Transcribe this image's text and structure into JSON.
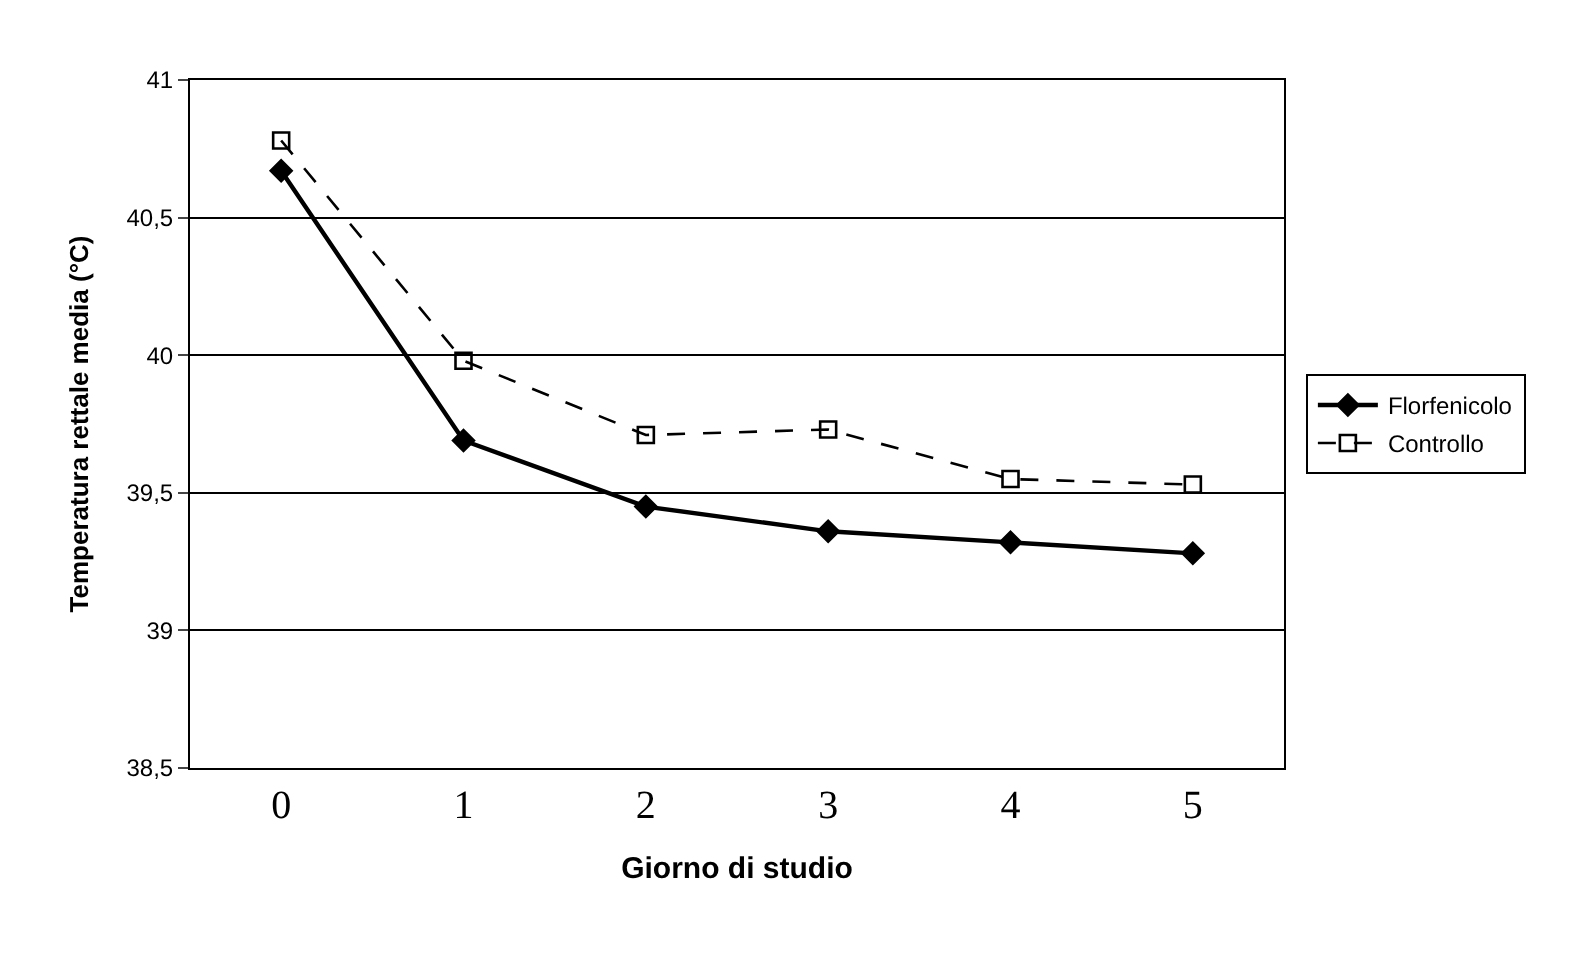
{
  "chart_data": {
    "type": "line",
    "xlabel": "Giorno di studio",
    "ylabel": "Temperatura rettale media (°C)",
    "categories": [
      "0",
      "1",
      "2",
      "3",
      "4",
      "5"
    ],
    "series": [
      {
        "name": "Florfenicolo",
        "color": "#000000",
        "values": [
          40.67,
          39.69,
          39.45,
          39.36,
          39.32,
          39.28
        ],
        "marker": "diamond",
        "line_style": "solid"
      },
      {
        "name": "Controllo",
        "color": "#000000",
        "values": [
          40.78,
          39.98,
          39.71,
          39.73,
          39.55,
          39.53
        ],
        "marker": "square",
        "line_style": "dashed"
      }
    ],
    "ylim": [
      38.5,
      41
    ],
    "yticks": [
      {
        "value": 38.5,
        "label": "38,5"
      },
      {
        "value": 39,
        "label": "39"
      },
      {
        "value": 39.5,
        "label": "39,5"
      },
      {
        "value": 40,
        "label": "40"
      },
      {
        "value": 40.5,
        "label": "40,5"
      },
      {
        "value": 41,
        "label": "41"
      }
    ],
    "grid": "y",
    "legend": "right"
  }
}
